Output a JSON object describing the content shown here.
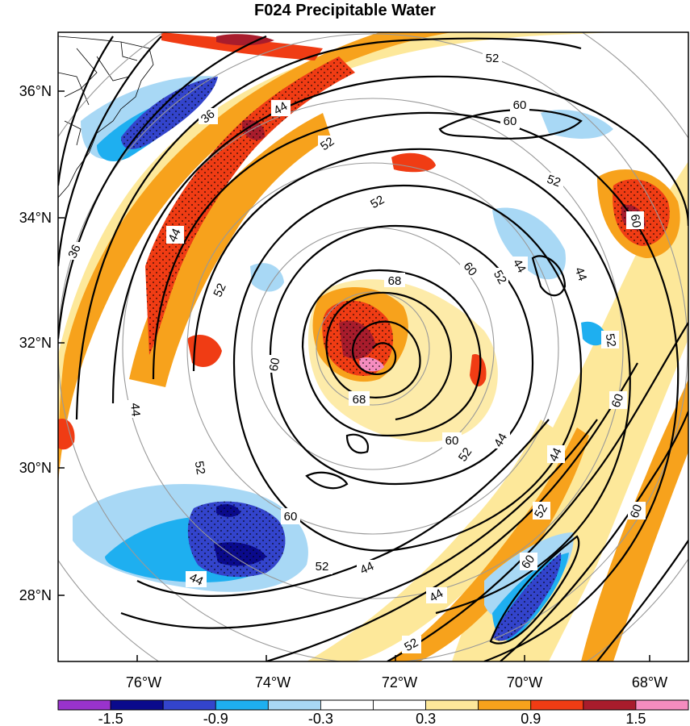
{
  "title": "F024 Precipitable Water",
  "lat_labels": [
    "36°N",
    "34°N",
    "32°N",
    "30°N",
    "28°N"
  ],
  "lon_labels": [
    "76°W",
    "74°W",
    "72°W",
    "70°W",
    "68°W"
  ],
  "contour_labels": [
    "36",
    "44",
    "52",
    "60",
    "68"
  ],
  "colorbar": {
    "colors": [
      "#9933cc",
      "#0a0a8c",
      "#3344cc",
      "#1eaff0",
      "#a8d8f5",
      "#ffffff",
      "#ffffff",
      "#fde89a",
      "#f7a21c",
      "#f03c14",
      "#a81c2c",
      "#f58cbf"
    ],
    "labels": [
      "-1.5",
      "-0.9",
      "-0.3",
      "0.3",
      "0.9",
      "1.5"
    ]
  }
}
